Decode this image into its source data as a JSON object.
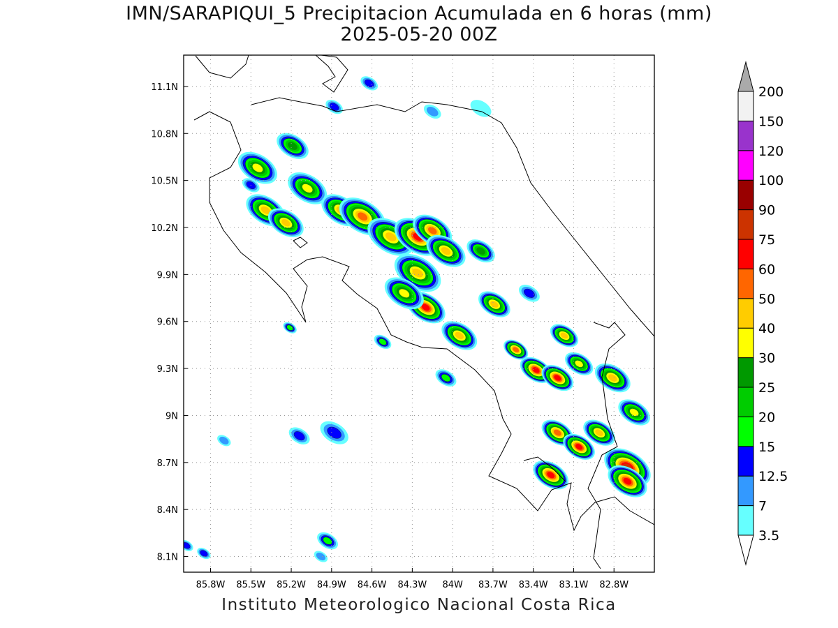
{
  "title": "IMN/SARAPIQUI_5 Precipitacion Acumulada en 6 horas (mm)",
  "subtitle": "2025-05-20 00Z",
  "footer": "Instituto Meteorologico Nacional Costa Rica",
  "map": {
    "lon_range": [
      -86.0,
      -82.5
    ],
    "lat_range": [
      8.0,
      11.3
    ],
    "grid": "dotted",
    "lon_ticks": [
      {
        "v": -85.8,
        "label": "85.8W"
      },
      {
        "v": -85.5,
        "label": "85.5W"
      },
      {
        "v": -85.2,
        "label": "85.2W"
      },
      {
        "v": -84.9,
        "label": "84.9W"
      },
      {
        "v": -84.6,
        "label": "84.6W"
      },
      {
        "v": -84.3,
        "label": "84.3W"
      },
      {
        "v": -84.0,
        "label": "84W"
      },
      {
        "v": -83.7,
        "label": "83.7W"
      },
      {
        "v": -83.4,
        "label": "83.4W"
      },
      {
        "v": -83.1,
        "label": "83.1W"
      },
      {
        "v": -82.8,
        "label": "82.8W"
      }
    ],
    "lat_ticks": [
      {
        "v": 11.1,
        "label": "11.1N"
      },
      {
        "v": 10.8,
        "label": "10.8N"
      },
      {
        "v": 10.5,
        "label": "10.5N"
      },
      {
        "v": 10.2,
        "label": "10.2N"
      },
      {
        "v": 9.9,
        "label": "9.9N"
      },
      {
        "v": 9.6,
        "label": "9.6N"
      },
      {
        "v": 9.3,
        "label": "9.3N"
      },
      {
        "v": 9.0,
        "label": "9N"
      },
      {
        "v": 8.7,
        "label": "8.7N"
      },
      {
        "v": 8.4,
        "label": "8.4N"
      },
      {
        "v": 8.1,
        "label": "8.1N"
      }
    ]
  },
  "colorbar": {
    "levels": [
      "3.5",
      "7",
      "12.5",
      "15",
      "20",
      "25",
      "30",
      "40",
      "50",
      "60",
      "75",
      "90",
      "100",
      "120",
      "150",
      "200"
    ],
    "colors": [
      "#66ffff",
      "#3399ff",
      "#0000ff",
      "#00ff00",
      "#00cc00",
      "#009900",
      "#ffff00",
      "#ffcc00",
      "#ff6600",
      "#ff0000",
      "#cc3300",
      "#990000",
      "#ff00ff",
      "#9933cc",
      "#f2f2f2"
    ],
    "over_color": "#aaaaaa",
    "under_color": "#ffffff"
  },
  "rain_cells": [
    {
      "lon": -85.45,
      "lat": 10.58,
      "max_mm": 30,
      "size": 0.1
    },
    {
      "lon": -85.39,
      "lat": 10.31,
      "max_mm": 40,
      "size": 0.1
    },
    {
      "lon": -85.24,
      "lat": 10.23,
      "max_mm": 40,
      "size": 0.09
    },
    {
      "lon": -85.08,
      "lat": 10.45,
      "max_mm": 30,
      "size": 0.1
    },
    {
      "lon": -85.19,
      "lat": 10.72,
      "max_mm": 25,
      "size": 0.08
    },
    {
      "lon": -84.83,
      "lat": 10.31,
      "max_mm": 40,
      "size": 0.1
    },
    {
      "lon": -84.67,
      "lat": 10.27,
      "max_mm": 50,
      "size": 0.12
    },
    {
      "lon": -84.46,
      "lat": 10.14,
      "max_mm": 40,
      "size": 0.12
    },
    {
      "lon": -84.26,
      "lat": 10.14,
      "max_mm": 60,
      "size": 0.12
    },
    {
      "lon": -84.15,
      "lat": 10.18,
      "max_mm": 50,
      "size": 0.1
    },
    {
      "lon": -84.05,
      "lat": 10.05,
      "max_mm": 40,
      "size": 0.1
    },
    {
      "lon": -84.26,
      "lat": 9.91,
      "max_mm": 40,
      "size": 0.12
    },
    {
      "lon": -84.2,
      "lat": 9.69,
      "max_mm": 60,
      "size": 0.1
    },
    {
      "lon": -84.36,
      "lat": 9.78,
      "max_mm": 30,
      "size": 0.1
    },
    {
      "lon": -83.79,
      "lat": 10.05,
      "max_mm": 25,
      "size": 0.07
    },
    {
      "lon": -83.69,
      "lat": 9.71,
      "max_mm": 40,
      "size": 0.08
    },
    {
      "lon": -83.95,
      "lat": 9.51,
      "max_mm": 40,
      "size": 0.09
    },
    {
      "lon": -83.53,
      "lat": 9.42,
      "max_mm": 50,
      "size": 0.06
    },
    {
      "lon": -83.38,
      "lat": 9.29,
      "max_mm": 60,
      "size": 0.08
    },
    {
      "lon": -83.22,
      "lat": 9.24,
      "max_mm": 60,
      "size": 0.08
    },
    {
      "lon": -83.17,
      "lat": 9.51,
      "max_mm": 40,
      "size": 0.07
    },
    {
      "lon": -83.06,
      "lat": 9.33,
      "max_mm": 30,
      "size": 0.07
    },
    {
      "lon": -82.81,
      "lat": 9.24,
      "max_mm": 40,
      "size": 0.09
    },
    {
      "lon": -82.65,
      "lat": 9.02,
      "max_mm": 30,
      "size": 0.08
    },
    {
      "lon": -83.22,
      "lat": 8.89,
      "max_mm": 50,
      "size": 0.08
    },
    {
      "lon": -83.06,
      "lat": 8.8,
      "max_mm": 60,
      "size": 0.08
    },
    {
      "lon": -83.27,
      "lat": 8.62,
      "max_mm": 60,
      "size": 0.09
    },
    {
      "lon": -82.7,
      "lat": 8.67,
      "max_mm": 75,
      "size": 0.12
    },
    {
      "lon": -82.7,
      "lat": 8.58,
      "max_mm": 60,
      "size": 0.1
    },
    {
      "lon": -82.91,
      "lat": 8.89,
      "max_mm": 40,
      "size": 0.08
    },
    {
      "lon": -84.88,
      "lat": 8.89,
      "max_mm": 12.5,
      "size": 0.07
    },
    {
      "lon": -85.14,
      "lat": 8.87,
      "max_mm": 12.5,
      "size": 0.05
    },
    {
      "lon": -84.93,
      "lat": 8.2,
      "max_mm": 15,
      "size": 0.05
    },
    {
      "lon": -83.43,
      "lat": 9.78,
      "max_mm": 12.5,
      "size": 0.05
    },
    {
      "lon": -84.62,
      "lat": 11.12,
      "max_mm": 12.5,
      "size": 0.04
    },
    {
      "lon": -84.15,
      "lat": 10.94,
      "max_mm": 7,
      "size": 0.04
    },
    {
      "lon": -83.79,
      "lat": 10.96,
      "max_mm": 3.5,
      "size": 0.05
    },
    {
      "lon": -84.52,
      "lat": 9.47,
      "max_mm": 15,
      "size": 0.04
    },
    {
      "lon": -84.05,
      "lat": 9.24,
      "max_mm": 15,
      "size": 0.05
    },
    {
      "lon": -85.7,
      "lat": 8.84,
      "max_mm": 7,
      "size": 0.03
    },
    {
      "lon": -85.21,
      "lat": 9.56,
      "max_mm": 15,
      "size": 0.03
    },
    {
      "lon": -85.98,
      "lat": 8.17,
      "max_mm": 12.5,
      "size": 0.03
    },
    {
      "lon": -85.85,
      "lat": 8.12,
      "max_mm": 12.5,
      "size": 0.03
    },
    {
      "lon": -84.98,
      "lat": 8.1,
      "max_mm": 7,
      "size": 0.03
    },
    {
      "lon": -84.88,
      "lat": 10.97,
      "max_mm": 12.5,
      "size": 0.04
    },
    {
      "lon": -85.5,
      "lat": 10.47,
      "max_mm": 12.5,
      "size": 0.04
    }
  ]
}
